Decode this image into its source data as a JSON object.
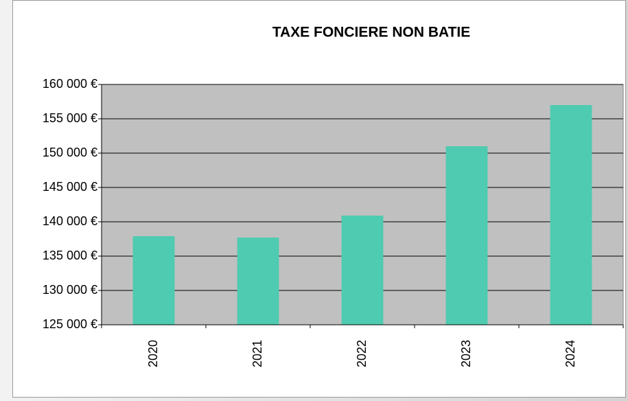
{
  "chart_data": {
    "type": "bar",
    "title": "TAXE FONCIERE NON BATIE",
    "categories": [
      "2020",
      "2021",
      "2022",
      "2023",
      "2024"
    ],
    "values": [
      137900,
      137700,
      140900,
      151000,
      157000
    ],
    "color": "#4ecbb0",
    "ylim": [
      125000,
      160000
    ],
    "yticks": [
      {
        "value": 125000,
        "label": "125 000 €"
      },
      {
        "value": 130000,
        "label": "130 000 €"
      },
      {
        "value": 135000,
        "label": "135 000 €"
      },
      {
        "value": 140000,
        "label": "140 000 €"
      },
      {
        "value": 145000,
        "label": "145 000 €"
      },
      {
        "value": 150000,
        "label": "150 000 €"
      },
      {
        "value": 155000,
        "label": "155 000 €"
      },
      {
        "value": 160000,
        "label": "160 000 €"
      }
    ],
    "grid": true
  }
}
